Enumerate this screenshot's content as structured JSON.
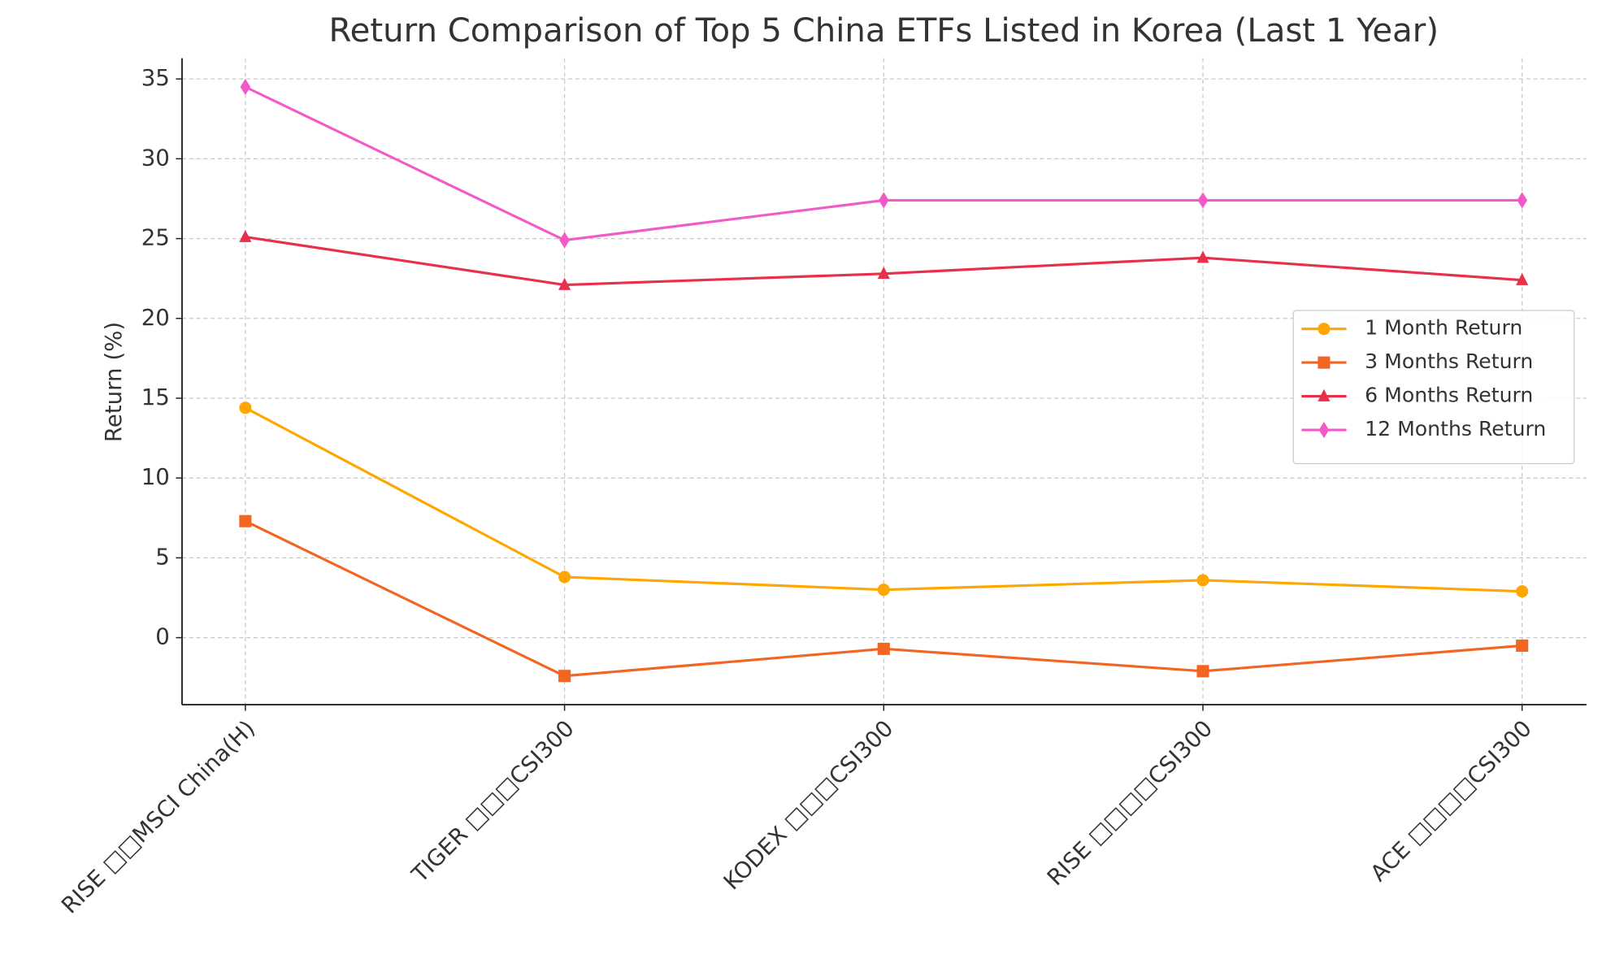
{
  "chart_data": {
    "type": "line",
    "title": "Return Comparison of Top 5 China ETFs Listed in Korea (Last 1 Year)",
    "y_label": "Return (%)",
    "categories": [
      "RISE □□MSCI China(H)",
      "TIGER □□□CSI300",
      "KODEX □□□CSI300",
      "RISE □□□□CSI300",
      "ACE □□□□CSI300"
    ],
    "series": [
      {
        "name": "1 Month Return",
        "color": "#ffa600",
        "marker": "circle",
        "values": [
          14.4,
          3.8,
          3.0,
          3.6,
          2.9
        ]
      },
      {
        "name": "3 Months Return",
        "color": "#f26522",
        "marker": "square",
        "values": [
          7.3,
          -2.4,
          -0.7,
          -2.1,
          -0.5
        ]
      },
      {
        "name": "6 Months Return",
        "color": "#e8304a",
        "marker": "triangle",
        "values": [
          25.1,
          22.1,
          22.8,
          23.8,
          22.4
        ]
      },
      {
        "name": "12 Months Return",
        "color": "#f25ac8",
        "marker": "diamond",
        "values": [
          34.5,
          24.9,
          27.4,
          27.4,
          27.4
        ]
      }
    ],
    "ylim": [
      -4.2,
      36.3
    ],
    "yticks": [
      0,
      5,
      10,
      15,
      20,
      25,
      30,
      35
    ],
    "grid": true,
    "legend": "right"
  }
}
